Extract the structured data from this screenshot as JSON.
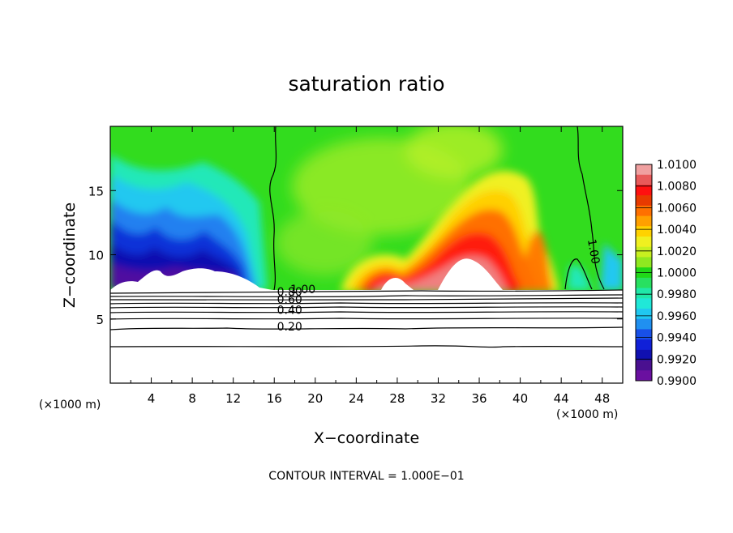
{
  "chart_data": {
    "type": "heatmap",
    "title": "saturation ratio",
    "xlabel": "X−coordinate",
    "ylabel": "Z−coordinate",
    "x_unit_left": "(×1000 m)",
    "x_unit_right": "(×1000 m)",
    "footer": "CONTOUR INTERVAL = 1.000E−01",
    "xlim": [
      0,
      50
    ],
    "ylim": [
      0,
      20
    ],
    "x_ticks": [
      4,
      8,
      12,
      16,
      20,
      24,
      28,
      32,
      36,
      40,
      44,
      48
    ],
    "y_ticks": [
      5,
      10,
      15
    ],
    "colorbar": {
      "labels": [
        "1.0100",
        "1.0080",
        "1.0060",
        "1.0040",
        "1.0020",
        "1.0000",
        "0.9980",
        "0.9960",
        "0.9940",
        "0.9920",
        "0.9900"
      ],
      "colors": [
        "#f0a0a0",
        "#e85a5a",
        "#ff1010",
        "#e83a00",
        "#ff7000",
        "#ffa000",
        "#ffd200",
        "#f0f020",
        "#c8f020",
        "#90e820",
        "#20d818",
        "#28e060",
        "#20e8a8",
        "#20e8d8",
        "#20c8f0",
        "#2090f0",
        "#1850e8",
        "#1020d8",
        "#1010b0",
        "#4a1090",
        "#6a10a0"
      ]
    },
    "contour_labels": [
      {
        "text": "1.00",
        "x": 18.8,
        "z": 7.0
      },
      {
        "text": "0.80",
        "x": 17.5,
        "z": 6.8
      },
      {
        "text": "0.60",
        "x": 17.5,
        "z": 6.2
      },
      {
        "text": "0.40",
        "x": 17.5,
        "z": 5.4
      },
      {
        "text": "0.20",
        "x": 17.5,
        "z": 4.1
      },
      {
        "text": "1.00",
        "x": 46.8,
        "z": 10.2
      }
    ]
  }
}
